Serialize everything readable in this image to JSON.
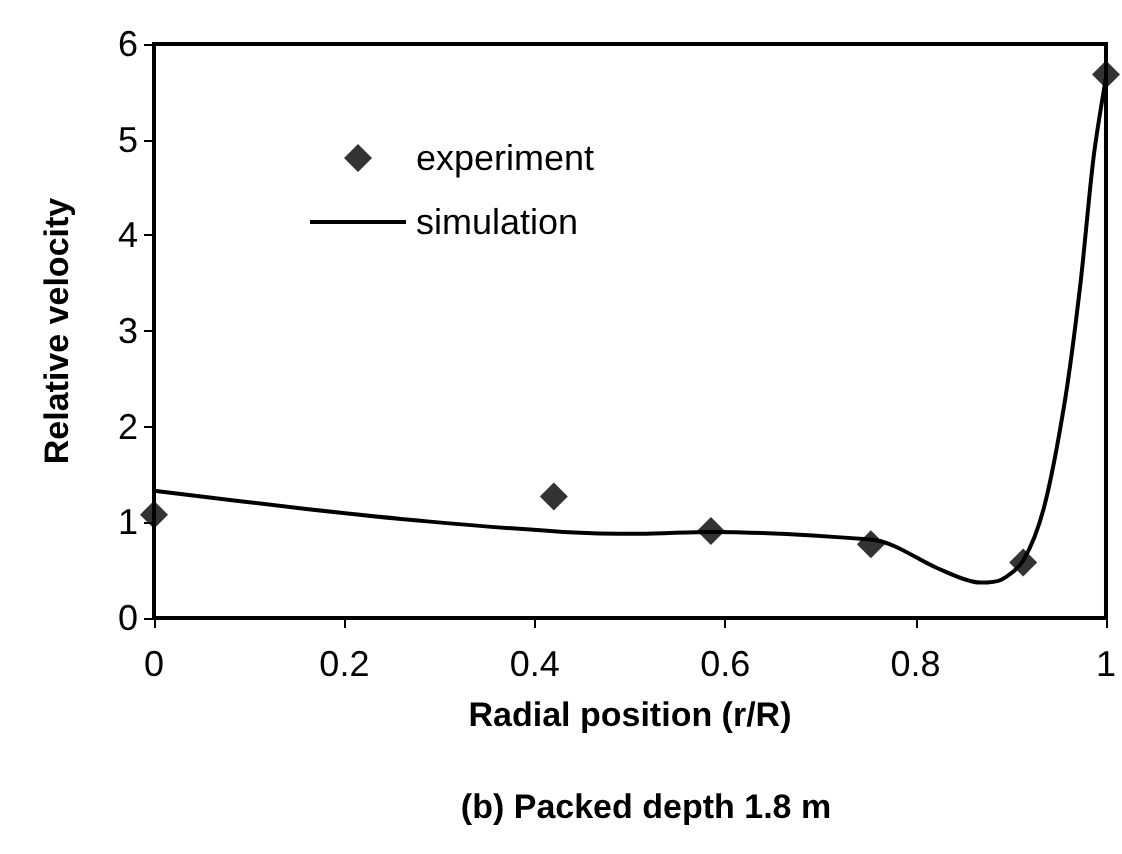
{
  "chart_data": {
    "type": "scatter",
    "title": "(b) Packed depth 1.8 m",
    "xlabel": "Radial position (r/R)",
    "ylabel": "Relative velocity",
    "xlim": [
      0,
      1
    ],
    "xticks": [
      0,
      0.2,
      0.4,
      0.6,
      0.8,
      1
    ],
    "ylim": [
      0,
      6
    ],
    "yticks": [
      0,
      1,
      2,
      3,
      4,
      5,
      6
    ],
    "grid": false,
    "legend": "top left",
    "series": [
      {
        "name": "experiment",
        "marker": "diamond",
        "color": "#000000",
        "x": [
          0,
          0.42,
          0.585,
          0.753,
          0.913,
          1
        ],
        "values": [
          1.08,
          1.27,
          0.91,
          0.77,
          0.58,
          5.68
        ]
      },
      {
        "name": "simulation",
        "type": "line",
        "marker": "none",
        "line_style": "solid",
        "color": "#000000",
        "x": [
          0,
          0.16,
          0.287,
          0.43,
          0.51,
          0.585,
          0.753,
          0.778,
          0.823,
          0.868,
          0.89,
          0.913,
          0.935,
          0.957,
          0.973,
          0.987,
          1
        ],
        "values": [
          1.33,
          1.14,
          1.01,
          0.9,
          0.88,
          0.9,
          0.82,
          0.75,
          0.52,
          0.37,
          0.4,
          0.6,
          1.16,
          2.28,
          3.48,
          4.82,
          5.65
        ]
      }
    ]
  }
}
